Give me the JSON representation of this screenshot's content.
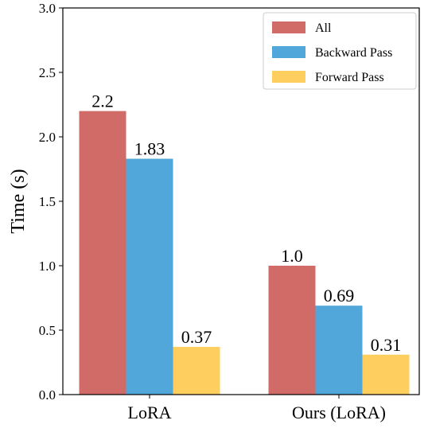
{
  "chart_data": {
    "type": "bar",
    "categories": [
      "LoRA",
      "Ours (LoRA)"
    ],
    "series": [
      {
        "name": "All",
        "values": [
          2.2,
          1.0
        ],
        "labels": [
          "2.2",
          "1.0"
        ],
        "color": "#d16b67"
      },
      {
        "name": "Backward Pass",
        "values": [
          1.83,
          0.69
        ],
        "labels": [
          "1.83",
          "0.69"
        ],
        "color": "#52a7da"
      },
      {
        "name": "Forward Pass",
        "values": [
          0.37,
          0.31
        ],
        "labels": [
          "0.37",
          "0.31"
        ],
        "color": "#fece5f"
      }
    ],
    "ylabel": "Time (s)",
    "xlabel": "",
    "ylim": [
      0,
      3.0
    ],
    "yticks": [
      "0.0",
      "0.5",
      "1.0",
      "1.5",
      "2.0",
      "2.5",
      "3.0"
    ],
    "grid": false,
    "legend_position": "top-right"
  }
}
